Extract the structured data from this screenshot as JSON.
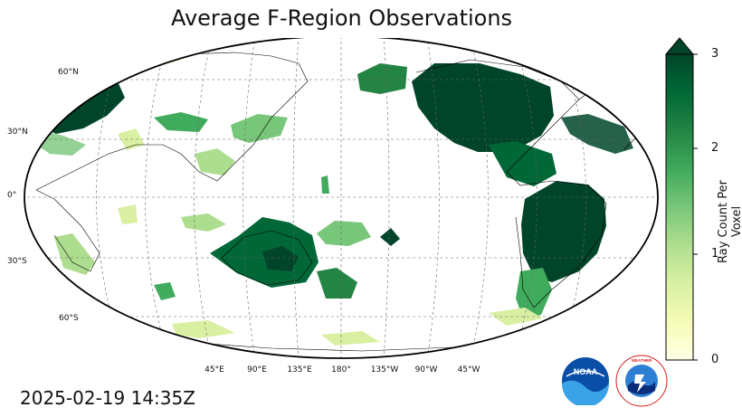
{
  "title": "Average F-Region Observations",
  "timestamp": "2025-02-19 14:35Z",
  "latitude_labels": [
    "60°N",
    "30°N",
    "0°",
    "30°S",
    "60°S"
  ],
  "longitude_labels": [
    "45°E",
    "90°E",
    "135°E",
    "180°",
    "135°W",
    "90°W",
    "45°W"
  ],
  "colorbar": {
    "label": "Ray Count Per Voxel",
    "ticks": [
      "0",
      "1",
      "2",
      "3"
    ],
    "min": 0,
    "max": 3,
    "extend": "max",
    "colormap": "YlGn",
    "colors": [
      "#ffffe5",
      "#f7fcb9",
      "#d9f0a3",
      "#addd8e",
      "#78c679",
      "#41ab5d",
      "#238443",
      "#006837",
      "#004529"
    ]
  },
  "map": {
    "projection": "Robinson",
    "central_longitude": 180,
    "gridlines": "dashed",
    "land_color": "#ffffff",
    "coastline_color": "#000000"
  },
  "logos": {
    "noaa": "NOAA",
    "nws": "NATIONAL WEATHER SERVICE"
  }
}
